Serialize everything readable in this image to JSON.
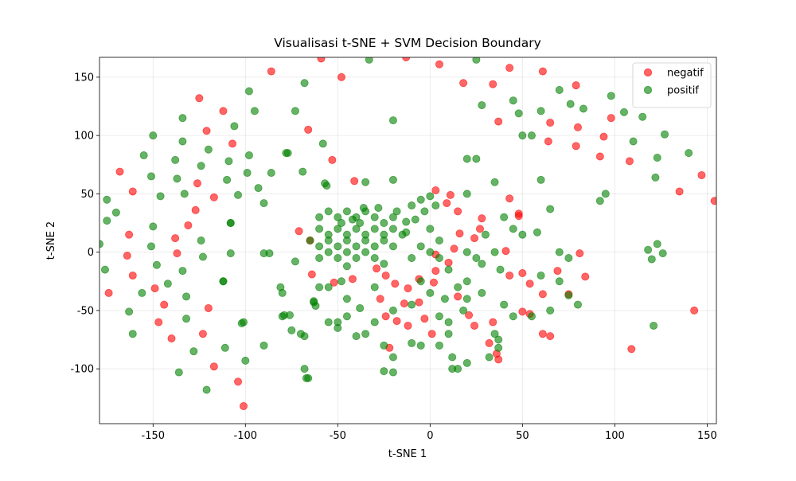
{
  "chart_data": {
    "type": "scatter",
    "title": "Visualisasi t-SNE + SVM Decision Boundary",
    "x_label": "t-SNE 1",
    "y_label": "t-SNE 2",
    "xlim": [
      -179,
      155
    ],
    "ylim": [
      -147,
      167
    ],
    "xticks": [
      -150,
      -100,
      -50,
      0,
      50,
      100,
      150
    ],
    "yticks": [
      -100,
      -50,
      0,
      50,
      100,
      150
    ],
    "grid": true,
    "legend": "upper right",
    "series": [
      {
        "name": "negatif",
        "color": "#ff0000",
        "x": [
          -86,
          -125,
          -112,
          -121,
          -107,
          -126,
          -117,
          -127,
          -131,
          -138,
          -137,
          -149,
          -144,
          -147,
          -140,
          -120,
          -123,
          -117,
          -104,
          -101,
          -168,
          -161,
          -163,
          -164,
          -161,
          -174,
          -59,
          -48,
          -66,
          -53,
          -41,
          -13,
          5,
          43,
          18,
          34,
          37,
          61,
          65,
          64,
          79,
          80,
          79,
          98,
          94,
          92,
          108,
          135,
          147,
          154,
          143,
          109,
          -71,
          -65,
          -64,
          -52,
          -42,
          -29,
          -24,
          -19,
          -27,
          -24,
          -22,
          -18,
          -12,
          -14,
          -12,
          -6,
          -6,
          -3,
          2,
          3,
          3,
          10,
          13,
          16,
          15,
          24,
          28,
          27,
          15,
          21,
          24,
          32,
          36,
          37,
          34,
          43,
          48,
          48,
          41,
          43,
          50,
          54,
          61,
          50,
          54,
          61,
          65,
          69,
          75,
          81,
          84,
          3,
          9,
          1,
          11
        ],
        "y": [
          155,
          132,
          121,
          104,
          93,
          59,
          47,
          36,
          23,
          12,
          -1,
          -31,
          -45,
          -60,
          -74,
          -48,
          -70,
          -98,
          -111,
          -132,
          69,
          52,
          15,
          -3,
          -20,
          -35,
          166,
          150,
          105,
          79,
          61,
          167,
          161,
          158,
          145,
          144,
          112,
          155,
          111,
          95,
          143,
          107,
          91,
          115,
          99,
          82,
          78,
          52,
          66,
          44,
          -50,
          -83,
          18,
          10,
          -19,
          -26,
          -23,
          -14,
          -20,
          -27,
          -40,
          -55,
          -82,
          -59,
          -63,
          -44,
          -31,
          -23,
          -43,
          -57,
          -26,
          -2,
          -16,
          -9,
          3,
          16,
          35,
          12,
          29,
          20,
          -38,
          -54,
          -63,
          -78,
          -87,
          -92,
          -60,
          46,
          33,
          31,
          1,
          -20,
          -18,
          -27,
          -36,
          -51,
          -53,
          -70,
          -72,
          -16,
          -36,
          -1,
          -21,
          53,
          42,
          -70,
          49
        ]
      },
      {
        "name": "positif",
        "color": "#008000",
        "x": [
          -150,
          -155,
          -151,
          -146,
          -150,
          -151,
          -148,
          -142,
          -156,
          -163,
          -161,
          -175,
          -175,
          -170,
          -176,
          -179,
          -134,
          -134,
          -138,
          -137,
          -133,
          -120,
          -124,
          -109,
          -106,
          -110,
          -104,
          -98,
          -99,
          -98,
          -95,
          -93,
          -90,
          -86,
          -124,
          -123,
          -134,
          -132,
          -132,
          -128,
          -136,
          -121,
          -111,
          -100,
          -90,
          -108,
          -108,
          -112,
          -102,
          -90,
          -87,
          -73,
          -68,
          -78,
          -69,
          -58,
          -57,
          -56,
          -73,
          -81,
          -80,
          -79,
          -76,
          -68,
          -68,
          -66,
          -63,
          -62,
          -60,
          -55,
          -50,
          -45,
          -40,
          -35,
          -30,
          -25,
          -20,
          -60,
          -55,
          -50,
          -45,
          -40,
          -35,
          -30,
          -25,
          -20,
          -15,
          -65,
          -60,
          -55,
          -50,
          -45,
          -40,
          -35,
          -30,
          -25,
          -20,
          -60,
          -55,
          -50,
          -45,
          -40,
          -35,
          -30,
          -25,
          -45,
          -38,
          -42,
          -48,
          -36,
          -28,
          -5,
          0,
          3,
          -10,
          -3,
          -8,
          0,
          5,
          -5,
          0,
          -10,
          5,
          10,
          -5,
          0,
          8,
          -10,
          -20,
          -25,
          -30,
          -20,
          -25,
          -20,
          -10,
          -5,
          5,
          12,
          12,
          15,
          20,
          10,
          5,
          -45,
          -38,
          -35,
          -40,
          -50,
          -50,
          -45,
          -55,
          -60,
          -63,
          -70,
          -67,
          20,
          25,
          28,
          35,
          40,
          45,
          50,
          50,
          45,
          55,
          60,
          58,
          60,
          65,
          70,
          75,
          70,
          75,
          80,
          65,
          55,
          45,
          40,
          35,
          37,
          28,
          20,
          15,
          20,
          25,
          28,
          35,
          38,
          30,
          20,
          10,
          92,
          95,
          105,
          98,
          115,
          110,
          122,
          123,
          127,
          140,
          118,
          120,
          123,
          126,
          121,
          83,
          76,
          70,
          60,
          48,
          20,
          18,
          32,
          37,
          -33,
          25,
          -20,
          -20,
          -35,
          -18,
          -13,
          -13,
          -30,
          -48,
          -55,
          -75,
          -80,
          -112,
          -108,
          -101,
          -77
        ],
        "y": [
          100,
          83,
          65,
          48,
          22,
          5,
          -11,
          -27,
          -35,
          -51,
          -70,
          45,
          27,
          34,
          -15,
          7,
          115,
          95,
          79,
          63,
          50,
          88,
          74,
          78,
          108,
          62,
          49,
          83,
          68,
          138,
          121,
          55,
          42,
          68,
          10,
          -4,
          -16,
          -38,
          -57,
          -85,
          -103,
          -118,
          -82,
          -93,
          -80,
          -1,
          25,
          -25,
          -61,
          -1,
          -1,
          121,
          145,
          85,
          69,
          93,
          59,
          57,
          -8,
          -30,
          -35,
          -54,
          -54,
          -100,
          -72,
          -108,
          -43,
          -46,
          30,
          35,
          30,
          35,
          30,
          35,
          30,
          25,
          30,
          20,
          15,
          20,
          15,
          20,
          15,
          20,
          15,
          20,
          15,
          10,
          5,
          10,
          5,
          10,
          5,
          10,
          5,
          10,
          5,
          -5,
          0,
          -5,
          0,
          -5,
          0,
          -5,
          -10,
          -12,
          25,
          28,
          25,
          38,
          38,
          45,
          48,
          40,
          40,
          35,
          28,
          20,
          10,
          5,
          0,
          -5,
          -5,
          -15,
          -25,
          -35,
          -40,
          -45,
          -50,
          -80,
          -60,
          -90,
          -102,
          -103,
          -78,
          -80,
          -80,
          -90,
          -100,
          -100,
          -95,
          -70,
          -55,
          -55,
          -48,
          -70,
          -72,
          -60,
          -65,
          -40,
          -30,
          -30,
          -42,
          -70,
          -108,
          50,
          80,
          126,
          60,
          30,
          20,
          15,
          100,
          130,
          100,
          62,
          17,
          -20,
          37,
          0,
          -5,
          -25,
          -37,
          -45,
          -50,
          -55,
          -55,
          -45,
          -70,
          -82,
          -35,
          -25,
          -30,
          0,
          -5,
          -10,
          0,
          -15,
          15,
          -40,
          -60,
          44,
          50,
          120,
          134,
          116,
          95,
          64,
          81,
          101,
          85,
          2,
          -6,
          7,
          -1,
          -63,
          123,
          127,
          139,
          121,
          119,
          80,
          -50,
          -90,
          -75,
          165,
          165,
          113,
          62,
          60,
          35,
          26,
          17,
          -30,
          -25,
          -60,
          -67,
          -55,
          -25,
          25,
          -60,
          85
        ]
      }
    ]
  }
}
